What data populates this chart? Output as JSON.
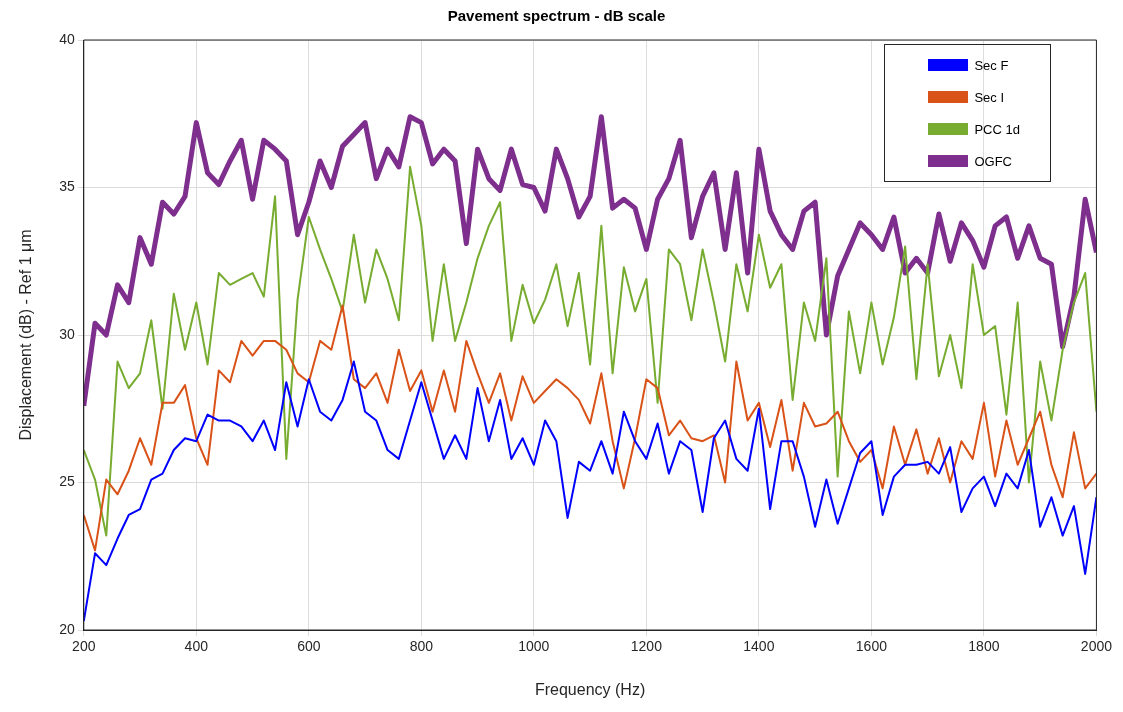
{
  "chart_data": {
    "type": "line",
    "title": "Pavement spectrum - dB scale",
    "xlabel": "Frequency (Hz)",
    "ylabel": "Displacement (dB) - Ref 1 μm",
    "x": [
      200,
      220,
      240,
      260,
      280,
      300,
      320,
      340,
      360,
      380,
      400,
      420,
      440,
      460,
      480,
      500,
      520,
      540,
      560,
      580,
      600,
      620,
      640,
      660,
      680,
      700,
      720,
      740,
      760,
      780,
      800,
      820,
      840,
      860,
      880,
      900,
      920,
      940,
      960,
      980,
      1000,
      1020,
      1040,
      1060,
      1080,
      1100,
      1120,
      1140,
      1160,
      1180,
      1200,
      1220,
      1240,
      1260,
      1280,
      1300,
      1320,
      1340,
      1360,
      1380,
      1400,
      1420,
      1440,
      1460,
      1480,
      1500,
      1520,
      1540,
      1560,
      1580,
      1600,
      1620,
      1640,
      1660,
      1680,
      1700,
      1720,
      1740,
      1760,
      1780,
      1800,
      1820,
      1840,
      1860,
      1880,
      1900,
      1920,
      1940,
      1960,
      1980,
      2000
    ],
    "series": [
      {
        "name": "Sec F",
        "color": "#0000ff",
        "values": [
          20.3,
          22.6,
          22.2,
          23.1,
          23.9,
          24.1,
          25.1,
          25.3,
          26.1,
          26.5,
          26.4,
          27.3,
          27.1,
          27.1,
          26.9,
          26.4,
          27.1,
          26.1,
          28.4,
          26.9,
          28.5,
          27.4,
          27.1,
          27.8,
          29.1,
          27.4,
          27.1,
          26.1,
          25.8,
          27.1,
          28.4,
          27.1,
          25.8,
          26.6,
          25.8,
          28.2,
          26.4,
          27.8,
          25.8,
          26.5,
          25.6,
          27.1,
          26.4,
          23.8,
          25.7,
          25.4,
          26.4,
          25.3,
          27.4,
          26.4,
          25.8,
          27.0,
          25.3,
          26.4,
          26.1,
          24.0,
          26.5,
          27.1,
          25.8,
          25.4,
          27.5,
          24.1,
          26.4,
          26.4,
          25.2,
          23.5,
          25.1,
          23.6,
          24.8,
          26.0,
          26.4,
          23.9,
          25.2,
          25.6,
          25.6,
          25.7,
          25.3,
          26.2,
          24.0,
          24.8,
          25.2,
          24.2,
          25.3,
          24.8,
          26.1,
          23.5,
          24.5,
          23.2,
          24.2,
          21.9,
          24.5
        ]
      },
      {
        "name": "Sec I",
        "color": "#d95319",
        "values": [
          23.9,
          22.7,
          25.1,
          24.6,
          25.4,
          26.5,
          25.6,
          27.7,
          27.7,
          28.3,
          26.5,
          25.6,
          28.8,
          28.4,
          29.8,
          29.3,
          29.8,
          29.8,
          29.5,
          28.7,
          28.4,
          29.8,
          29.5,
          31.0,
          28.5,
          28.2,
          28.7,
          27.7,
          29.5,
          28.1,
          28.8,
          27.4,
          28.8,
          27.4,
          29.8,
          28.7,
          27.7,
          28.7,
          27.1,
          28.6,
          27.7,
          28.1,
          28.5,
          28.2,
          27.8,
          27.0,
          28.7,
          26.4,
          24.8,
          26.5,
          28.5,
          28.2,
          26.6,
          27.1,
          26.5,
          26.4,
          26.6,
          25.0,
          29.1,
          27.1,
          27.7,
          26.2,
          27.8,
          25.4,
          27.7,
          26.9,
          27.0,
          27.4,
          26.4,
          25.7,
          26.1,
          24.8,
          26.9,
          25.6,
          26.8,
          25.3,
          26.5,
          25.0,
          26.4,
          25.8,
          27.7,
          25.2,
          27.1,
          25.6,
          26.5,
          27.4,
          25.6,
          24.5,
          26.7,
          24.8,
          25.3
        ]
      },
      {
        "name": "PCC 1d",
        "color": "#77ac30",
        "values": [
          26.1,
          25.1,
          23.2,
          29.1,
          28.2,
          28.7,
          30.5,
          27.5,
          31.4,
          29.5,
          31.1,
          29.0,
          32.1,
          31.7,
          31.9,
          32.1,
          31.3,
          34.7,
          25.8,
          31.2,
          34.0,
          32.9,
          31.9,
          30.8,
          33.4,
          31.1,
          32.9,
          31.9,
          30.5,
          35.7,
          33.7,
          29.8,
          32.4,
          29.8,
          31.1,
          32.6,
          33.7,
          34.5,
          29.8,
          31.7,
          30.4,
          31.2,
          32.4,
          30.3,
          32.1,
          29.0,
          33.7,
          28.7,
          32.3,
          30.8,
          31.9,
          27.7,
          32.9,
          32.4,
          30.5,
          32.9,
          31.1,
          29.1,
          32.4,
          30.8,
          33.4,
          31.6,
          32.4,
          27.8,
          31.1,
          29.8,
          32.6,
          25.2,
          30.8,
          28.7,
          31.1,
          29.0,
          30.6,
          33.0,
          28.5,
          32.4,
          28.6,
          30.0,
          28.2,
          32.4,
          30.0,
          30.3,
          27.3,
          31.1,
          25.0,
          29.1,
          27.1,
          29.5,
          31.1,
          32.1,
          27.4
        ]
      },
      {
        "name": "OGFC",
        "color": "#7e2f8e",
        "values": [
          27.6,
          30.4,
          30.0,
          31.7,
          31.1,
          33.3,
          32.4,
          34.5,
          34.1,
          34.7,
          37.2,
          35.5,
          35.1,
          35.9,
          36.6,
          34.6,
          36.6,
          36.3,
          35.9,
          33.4,
          34.5,
          35.9,
          35.0,
          36.4,
          36.8,
          37.2,
          35.3,
          36.3,
          35.7,
          37.4,
          37.2,
          35.8,
          36.3,
          35.9,
          33.1,
          36.3,
          35.3,
          34.9,
          36.3,
          35.1,
          35.0,
          34.2,
          36.3,
          35.3,
          34.0,
          34.7,
          37.4,
          34.3,
          34.6,
          34.3,
          32.9,
          34.6,
          35.3,
          36.6,
          33.3,
          34.7,
          35.5,
          32.9,
          35.5,
          32.1,
          36.3,
          34.2,
          33.4,
          32.9,
          34.2,
          34.5,
          30.0,
          32.0,
          32.9,
          33.8,
          33.4,
          32.9,
          34.0,
          32.1,
          32.6,
          32.1,
          34.1,
          32.5,
          33.8,
          33.2,
          32.3,
          33.7,
          34.0,
          32.6,
          33.7,
          32.6,
          32.4,
          29.6,
          31.3,
          34.6,
          32.8
        ]
      }
    ],
    "xlim": [
      200,
      2000
    ],
    "xticks": [
      200,
      400,
      600,
      800,
      1000,
      1200,
      1400,
      1600,
      1800,
      2000
    ],
    "ylim": [
      20,
      40
    ],
    "yticks": [
      20,
      25,
      30,
      35,
      40
    ],
    "grid": true,
    "legend": "top right"
  }
}
